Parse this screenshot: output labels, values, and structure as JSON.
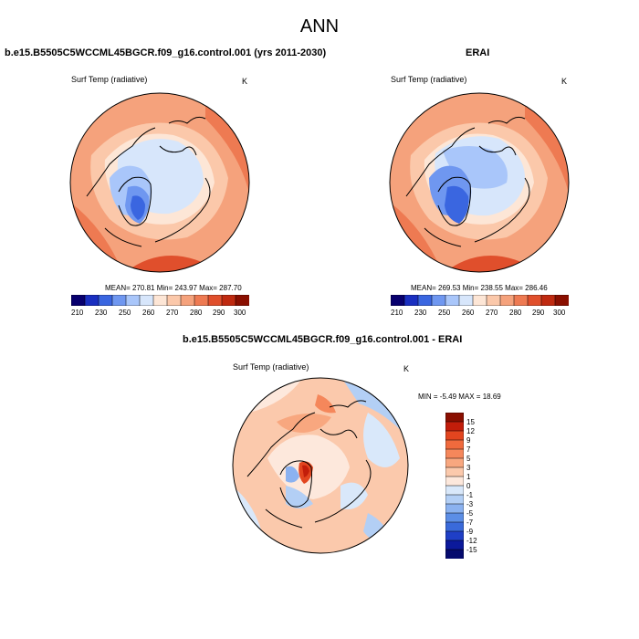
{
  "title": "ANN",
  "panels": {
    "model": {
      "title": "b.e15.B5505C5WCCML45BGCR.f09_g16.control.001 (yrs 2011-2030)",
      "variable": "Surf Temp (radiative)",
      "units": "K",
      "stats": "MEAN= 270.81  Min= 243.97  Max= 287.70"
    },
    "obs": {
      "title": "ERAI",
      "variable": "Surf Temp (radiative)",
      "units": "K",
      "stats": "MEAN= 269.53  Min= 238.55  Max= 286.46"
    },
    "diff": {
      "title": "b.e15.B5505C5WCCML45BGCR.f09_g16.control.001 - ERAI",
      "variable": "Surf Temp (radiative)",
      "units": "K",
      "stats": "MIN =  -5.49 MAX =  18.69"
    }
  },
  "colorbars": {
    "absolute": {
      "labels": [
        "210",
        "230",
        "250",
        "260",
        "270",
        "280",
        "290",
        "300"
      ],
      "colors": [
        "#08006e",
        "#1a2fc0",
        "#3a66e0",
        "#6f97f0",
        "#a9c6fa",
        "#d7e6fb",
        "#fde6d6",
        "#fbc8aa",
        "#f5a27c",
        "#ee7a52",
        "#e04f2c",
        "#bf2a10",
        "#8a0f00"
      ]
    },
    "difference": {
      "labels": [
        "15",
        "12",
        "9",
        "7",
        "5",
        "3",
        "1",
        "0",
        "-1",
        "-3",
        "-5",
        "-7",
        "-9",
        "-12",
        "-15"
      ],
      "colors": [
        "#8a0f00",
        "#c21d0a",
        "#e2451f",
        "#f06a3d",
        "#f5875b",
        "#f8a77f",
        "#fbc9ac",
        "#fde8dc",
        "#d9e8fa",
        "#b3cff5",
        "#8bb2f0",
        "#5c8ee6",
        "#3a6ada",
        "#1f3fc6",
        "#0b199b",
        "#050a6e"
      ]
    }
  },
  "icons": [
    "polar-stereographic-map"
  ]
}
